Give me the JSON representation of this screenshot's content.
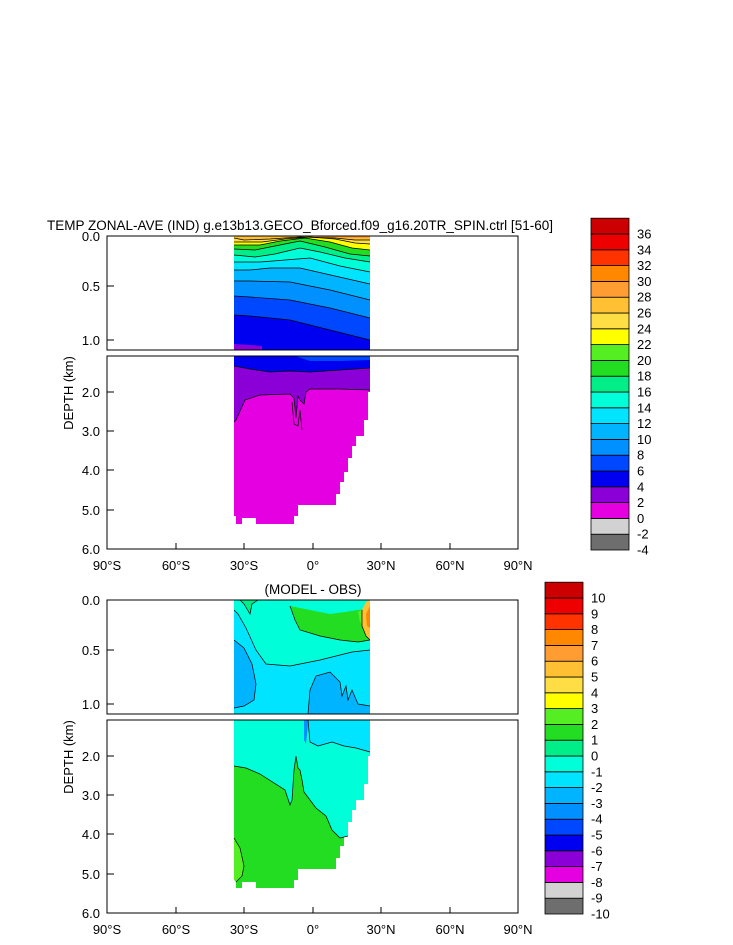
{
  "chart_data": [
    {
      "type": "heatmap",
      "title": "TEMP ZONAL-AVE (IND) g.e13b13.GECO_Bforced.f09_g16.20TR_SPIN.ctrl [51-60]",
      "ylabel": "DEPTH (km)",
      "x_ticks": [
        "90°S",
        "60°S",
        "30°S",
        "0°",
        "30°N",
        "60°N",
        "90°N"
      ],
      "x_range": [
        -90,
        90
      ],
      "y_ticks_upper": [
        "0.0",
        "0.5",
        "1.0"
      ],
      "y_ticks_lower": [
        "2.0",
        "3.0",
        "4.0",
        "5.0",
        "6.0"
      ],
      "y_range_upper": [
        0,
        1.15
      ],
      "y_range_lower": [
        1.15,
        6.0
      ],
      "data_extent": {
        "lat_min": -34,
        "lat_max": 25
      },
      "colorbar": {
        "levels": [
          "-4",
          "-2",
          "0",
          "2",
          "4",
          "6",
          "8",
          "10",
          "12",
          "14",
          "16",
          "18",
          "20",
          "22",
          "24",
          "26",
          "28",
          "30",
          "32",
          "34",
          "36"
        ],
        "colors": [
          "#6e6e6e",
          "#d2d2d2",
          "#e400e0",
          "#8c00d8",
          "#0000f0",
          "#0048ff",
          "#0090ff",
          "#00b4ff",
          "#00e4ff",
          "#00ffd8",
          "#00ee88",
          "#22dd22",
          "#55ee22",
          "#ffff00",
          "#ffdd44",
          "#ffc033",
          "#ff9d33",
          "#ff8800",
          "#ff3300",
          "#ee0000",
          "#cc0000"
        ]
      }
    },
    {
      "type": "heatmap",
      "title": "(MODEL - OBS)",
      "ylabel": "DEPTH (km)",
      "x_ticks": [
        "90°S",
        "60°S",
        "30°S",
        "0°",
        "30°N",
        "60°N",
        "90°N"
      ],
      "x_range": [
        -90,
        90
      ],
      "y_ticks_upper": [
        "0.0",
        "0.5",
        "1.0"
      ],
      "y_ticks_lower": [
        "2.0",
        "3.0",
        "4.0",
        "5.0",
        "6.0"
      ],
      "y_range_upper": [
        0,
        1.15
      ],
      "y_range_lower": [
        1.15,
        6.0
      ],
      "data_extent": {
        "lat_min": -34,
        "lat_max": 25
      },
      "colorbar": {
        "levels": [
          "-10",
          "-9",
          "-8",
          "-7",
          "-6",
          "-5",
          "-4",
          "-3",
          "-2",
          "-1",
          "0",
          "1",
          "2",
          "3",
          "4",
          "5",
          "6",
          "7",
          "8",
          "9",
          "10"
        ],
        "colors": [
          "#6e6e6e",
          "#d2d2d2",
          "#e400e0",
          "#8c00d8",
          "#0000f0",
          "#0048ff",
          "#0090ff",
          "#00b4ff",
          "#00e4ff",
          "#00ffd8",
          "#00ee88",
          "#22dd22",
          "#55ee22",
          "#ffff00",
          "#ffdd44",
          "#ffc033",
          "#ff9d33",
          "#ff8800",
          "#ff3300",
          "#ee0000",
          "#cc0000"
        ]
      }
    }
  ]
}
